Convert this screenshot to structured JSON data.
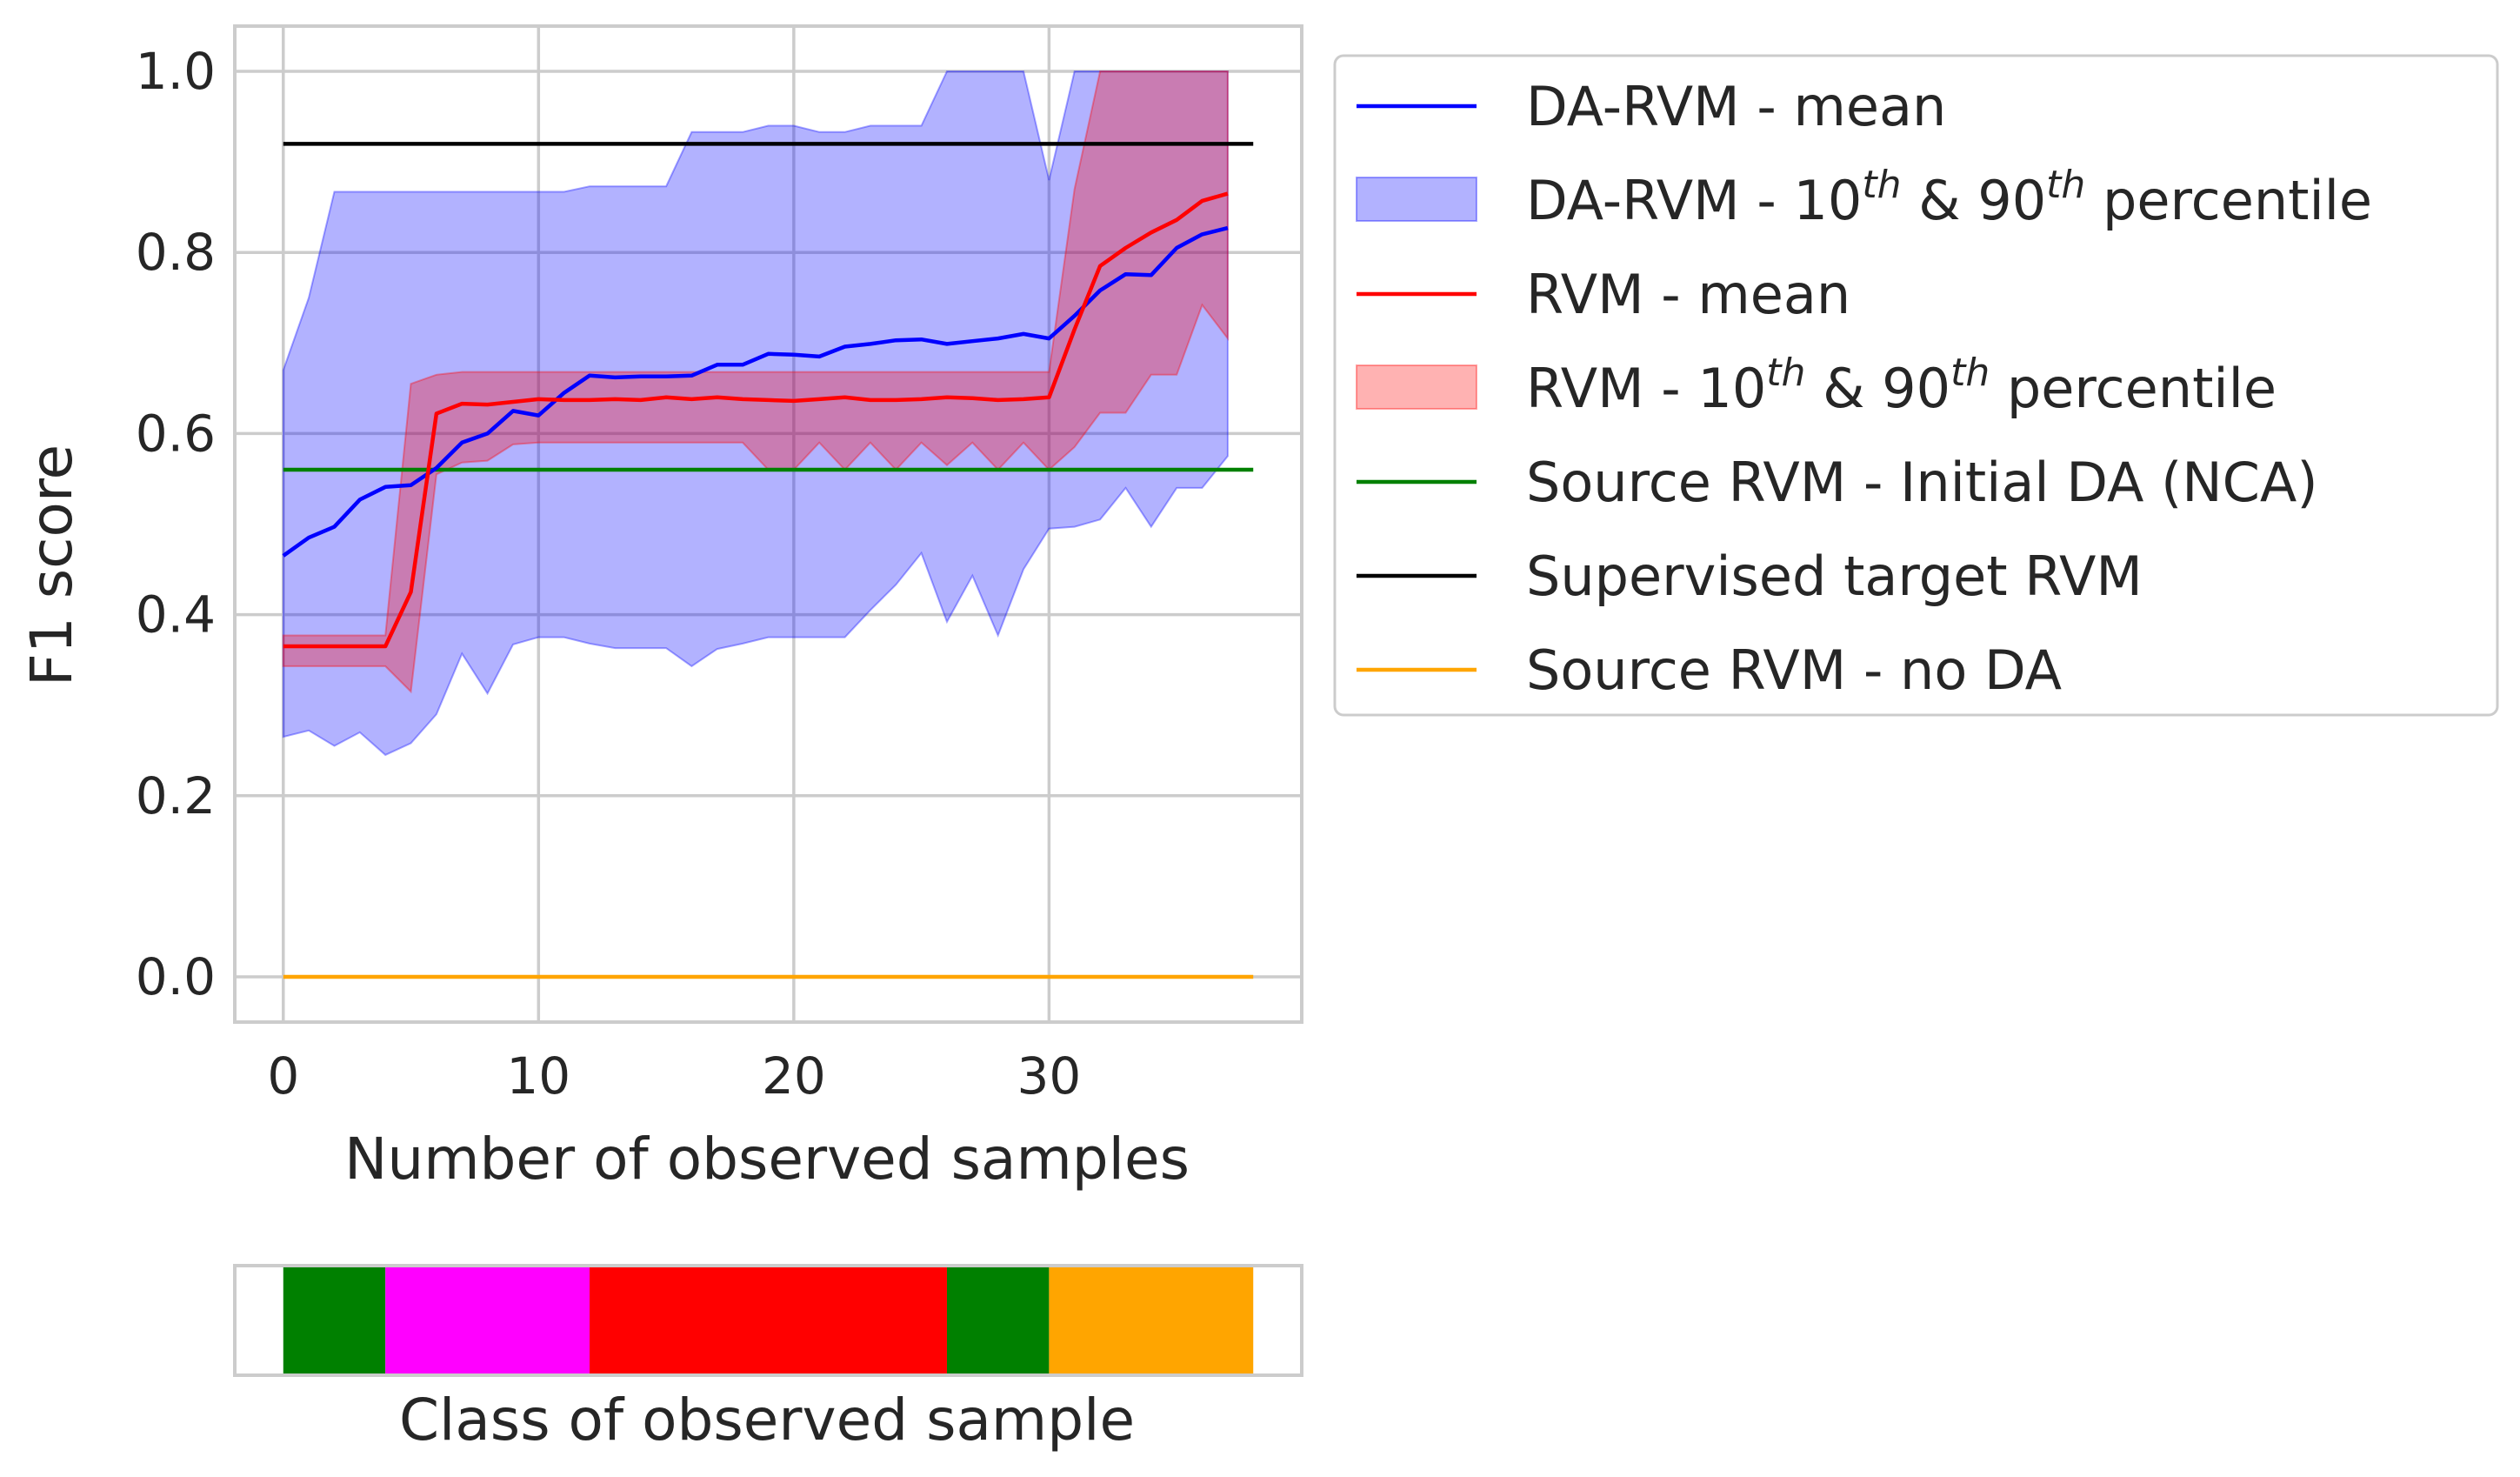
{
  "chart_data": {
    "type": "line",
    "xlabel": "Number of observed samples",
    "ylabel": "F1 score",
    "xlim": [
      -1.9,
      39.9
    ],
    "ylim": [
      -0.05,
      1.05
    ],
    "xticks": [
      0,
      10,
      20,
      30
    ],
    "yticks": [
      0.0,
      0.2,
      0.4,
      0.6,
      0.8,
      1.0
    ],
    "grid": true,
    "legend_position": "outside-right",
    "x": [
      0,
      1,
      2,
      3,
      4,
      5,
      6,
      7,
      8,
      9,
      10,
      11,
      12,
      13,
      14,
      15,
      16,
      17,
      18,
      19,
      20,
      21,
      22,
      23,
      24,
      25,
      26,
      27,
      28,
      29,
      30,
      31,
      32,
      33,
      34,
      35,
      36,
      37
    ],
    "series": [
      {
        "name": "DA-RVM - mean",
        "type": "line",
        "color": "#0000ff",
        "values": [
          0.465,
          0.485,
          0.497,
          0.527,
          0.541,
          0.543,
          0.562,
          0.59,
          0.6,
          0.625,
          0.62,
          0.645,
          0.664,
          0.662,
          0.663,
          0.663,
          0.664,
          0.676,
          0.676,
          0.688,
          0.687,
          0.685,
          0.696,
          0.699,
          0.703,
          0.704,
          0.699,
          0.702,
          0.705,
          0.71,
          0.705,
          0.73,
          0.758,
          0.776,
          0.775,
          0.805,
          0.82,
          0.827
        ]
      },
      {
        "name": "DA-RVM - 10th & 90th percentile",
        "type": "band",
        "color": "#0000ff",
        "opacity": 0.3,
        "lower": [
          0.265,
          0.272,
          0.255,
          0.27,
          0.245,
          0.258,
          0.29,
          0.357,
          0.313,
          0.367,
          0.375,
          0.375,
          0.368,
          0.363,
          0.363,
          0.363,
          0.343,
          0.362,
          0.368,
          0.375,
          0.375,
          0.375,
          0.375,
          0.405,
          0.433,
          0.468,
          0.392,
          0.443,
          0.377,
          0.45,
          0.495,
          0.497,
          0.505,
          0.54,
          0.497,
          0.54,
          0.54,
          0.575
        ],
        "upper": [
          0.67,
          0.75,
          0.867,
          0.867,
          0.867,
          0.867,
          0.867,
          0.867,
          0.867,
          0.867,
          0.867,
          0.867,
          0.873,
          0.873,
          0.873,
          0.873,
          0.933,
          0.933,
          0.933,
          0.94,
          0.94,
          0.933,
          0.933,
          0.94,
          0.94,
          0.94,
          1.0,
          1.0,
          1.0,
          1.0,
          0.88,
          1.0,
          1.0,
          1.0,
          1.0,
          1.0,
          1.0,
          1.0
        ]
      },
      {
        "name": "RVM - mean",
        "type": "line",
        "color": "#ff0000",
        "values": [
          0.365,
          0.365,
          0.365,
          0.365,
          0.365,
          0.425,
          0.622,
          0.633,
          0.632,
          0.635,
          0.638,
          0.637,
          0.637,
          0.638,
          0.637,
          0.64,
          0.638,
          0.64,
          0.638,
          0.637,
          0.636,
          0.638,
          0.64,
          0.637,
          0.637,
          0.638,
          0.64,
          0.639,
          0.637,
          0.638,
          0.64,
          0.715,
          0.785,
          0.805,
          0.822,
          0.836,
          0.857,
          0.865
        ]
      },
      {
        "name": "RVM - 10th & 90th percentile",
        "type": "band",
        "color": "#ff0000",
        "opacity": 0.3,
        "lower": [
          0.343,
          0.343,
          0.343,
          0.343,
          0.343,
          0.315,
          0.555,
          0.568,
          0.57,
          0.588,
          0.59,
          0.59,
          0.59,
          0.59,
          0.59,
          0.59,
          0.59,
          0.59,
          0.59,
          0.56,
          0.56,
          0.59,
          0.56,
          0.59,
          0.56,
          0.59,
          0.565,
          0.59,
          0.56,
          0.59,
          0.56,
          0.585,
          0.623,
          0.623,
          0.665,
          0.665,
          0.742,
          0.705
        ],
        "upper": [
          0.377,
          0.377,
          0.377,
          0.377,
          0.377,
          0.655,
          0.665,
          0.668,
          0.668,
          0.668,
          0.668,
          0.668,
          0.668,
          0.668,
          0.668,
          0.668,
          0.668,
          0.668,
          0.668,
          0.668,
          0.668,
          0.668,
          0.668,
          0.668,
          0.668,
          0.668,
          0.668,
          0.668,
          0.668,
          0.668,
          0.668,
          0.87,
          1.0,
          1.0,
          1.0,
          1.0,
          1.0,
          1.0
        ]
      },
      {
        "name": "Source RVM - Initial DA (NCA)",
        "type": "hline",
        "color": "#008000",
        "y": 0.56,
        "x_range": [
          0,
          38
        ]
      },
      {
        "name": "Supervised target RVM",
        "type": "hline",
        "color": "#000000",
        "y": 0.92,
        "x_range": [
          0,
          38
        ]
      },
      {
        "name": "Source RVM - no DA",
        "type": "hline",
        "color": "#ffa500",
        "y": 0.0,
        "x_range": [
          0,
          38
        ]
      }
    ],
    "class_strip": {
      "xlabel": "Class of observed sample",
      "segments": [
        {
          "start": 0,
          "end": 4,
          "color": "#008000"
        },
        {
          "start": 4,
          "end": 12,
          "color": "#ff00ff"
        },
        {
          "start": 12,
          "end": 26,
          "color": "#ff0000"
        },
        {
          "start": 26,
          "end": 30,
          "color": "#008000"
        },
        {
          "start": 30,
          "end": 38,
          "color": "#ffa500"
        }
      ]
    }
  },
  "legend": [
    {
      "kind": "line",
      "color": "#0000ff",
      "text_before": "DA-RVM - mean"
    },
    {
      "kind": "patch",
      "color": "#0000ff",
      "text_before": "DA-RVM - 10",
      "sup1": "th",
      "text_mid": " & 90",
      "sup2": "th",
      "text_after": " percentile"
    },
    {
      "kind": "line",
      "color": "#ff0000",
      "text_before": "RVM - mean"
    },
    {
      "kind": "patch",
      "color": "#ff0000",
      "text_before": "RVM - 10",
      "sup1": "th",
      "text_mid": " & 90",
      "sup2": "th",
      "text_after": " percentile"
    },
    {
      "kind": "line",
      "color": "#008000",
      "text_before": "Source RVM - Initial DA (NCA)"
    },
    {
      "kind": "line",
      "color": "#000000",
      "text_before": "Supervised target RVM"
    },
    {
      "kind": "line",
      "color": "#ffa500",
      "text_before": "Source RVM - no DA"
    }
  ]
}
